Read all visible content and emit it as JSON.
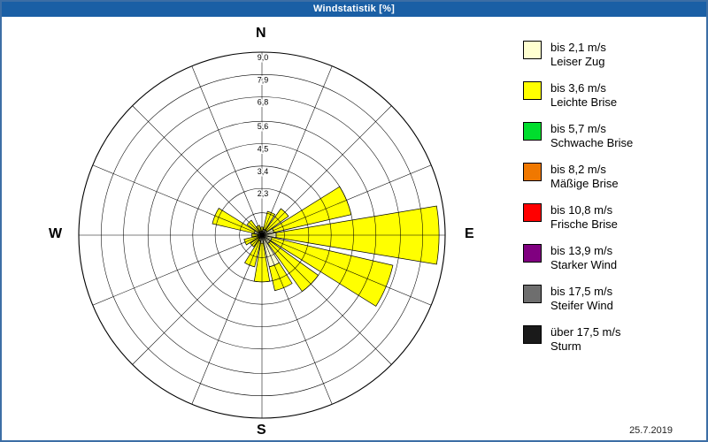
{
  "window": {
    "title": "Windstatistik [%]"
  },
  "compass": {
    "n": "N",
    "e": "E",
    "s": "S",
    "w": "W"
  },
  "footer": {
    "date": "25.7.2019"
  },
  "legend": {
    "items": [
      {
        "color": "#FFFFD0",
        "line1": "bis 2,1 m/s",
        "line2": "Leiser Zug"
      },
      {
        "color": "#FFFF00",
        "line1": "bis 3,6 m/s",
        "line2": "Leichte Brise"
      },
      {
        "color": "#00DD2D",
        "line1": "bis 5,7 m/s",
        "line2": "Schwache Brise"
      },
      {
        "color": "#F07800",
        "line1": "bis 8,2 m/s",
        "line2": "Mäßige Brise"
      },
      {
        "color": "#FF0000",
        "line1": "bis 10,8 m/s",
        "line2": "Frische Brise"
      },
      {
        "color": "#800080",
        "line1": "bis 13,9 m/s",
        "line2": "Starker Wind"
      },
      {
        "color": "#6E6E6E",
        "line1": "bis 17,5 m/s",
        "line2": "Steifer Wind"
      },
      {
        "color": "#1A1A1A",
        "line1": "über 17,5 m/s",
        "line2": "Sturm"
      }
    ]
  },
  "chart_data": {
    "type": "windrose",
    "title": "Windstatistik [%]",
    "unit": "%",
    "rmax": 9.0,
    "ring_values": [
      1.1,
      2.3,
      3.4,
      4.5,
      5.6,
      6.8,
      7.9,
      9.0
    ],
    "axis_labels": [
      {
        "value": 9.0,
        "label": "9,0"
      },
      {
        "value": 7.9,
        "label": "7,9"
      },
      {
        "value": 6.8,
        "label": "6,8"
      },
      {
        "value": 5.6,
        "label": "5,6"
      },
      {
        "value": 4.5,
        "label": "4,5"
      },
      {
        "value": 3.4,
        "label": "3,4"
      },
      {
        "value": 2.3,
        "label": "2,3"
      }
    ],
    "directions": [
      "N",
      "NNE",
      "NE",
      "ENE",
      "E",
      "ESE",
      "SE",
      "SSE",
      "S",
      "SSW",
      "SW",
      "WSW",
      "W",
      "WNW",
      "NW",
      "NNW"
    ],
    "petal_half_angle": 9.5,
    "series": [
      {
        "name": "bis 2,1 m/s",
        "color": "#FFFFD0",
        "values": [
          0.2,
          0.3,
          0.3,
          0.6,
          0.7,
          0.5,
          0.5,
          1.6,
          0.4,
          0.3,
          0.2,
          0.2,
          0.2,
          0.4,
          0.2,
          0.2
        ]
      },
      {
        "name": "bis 3,6 m/s",
        "color": "#FFFF00",
        "values": [
          0.2,
          0.9,
          1.3,
          3.9,
          8.0,
          6.1,
          2.9,
          1.2,
          1.9,
          1.3,
          0.5,
          0.7,
          0.3,
          2.1,
          0.7,
          0.3
        ]
      }
    ],
    "legend_position": "right",
    "grid": true
  }
}
